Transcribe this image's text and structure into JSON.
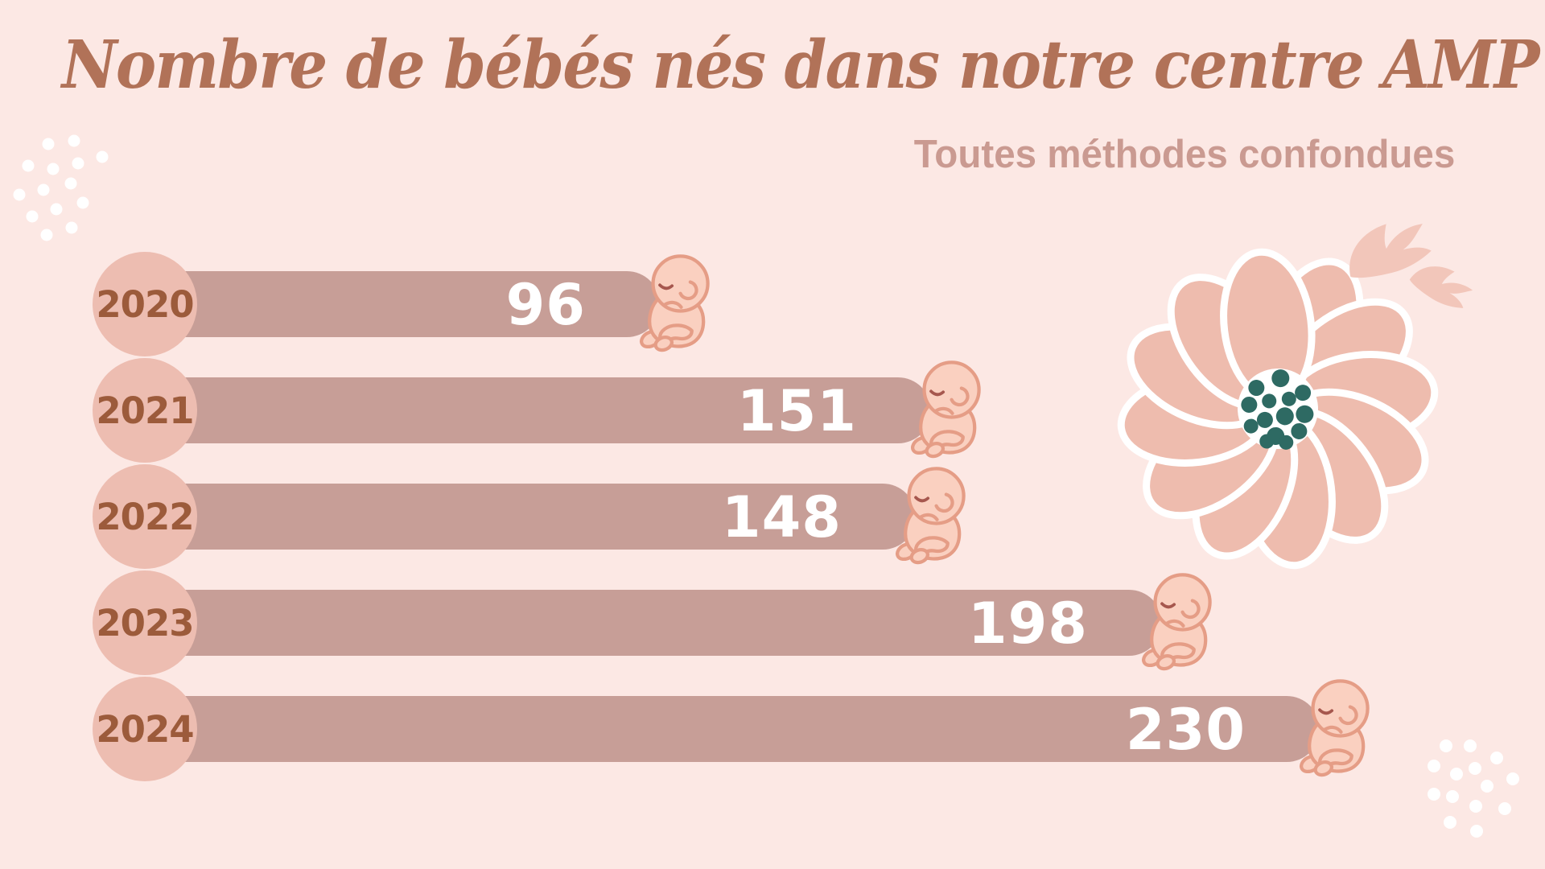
{
  "title": "Nombre de bébés nés dans notre centre AMP",
  "subtitle": "Toutes méthodes confondues",
  "chart_data": {
    "type": "bar",
    "orientation": "horizontal",
    "title": "Nombre de bébés nés dans notre centre AMP",
    "subtitle": "Toutes méthodes confondues",
    "categories": [
      "2020",
      "2021",
      "2022",
      "2023",
      "2024"
    ],
    "values": [
      96,
      151,
      148,
      198,
      230
    ],
    "series": [
      {
        "name": "Bébés nés",
        "values": [
          96,
          151,
          148,
          198,
          230
        ]
      }
    ],
    "value_labels": [
      "96",
      "151",
      "148",
      "198",
      "230"
    ],
    "grid": false,
    "legend": false,
    "xlim": [
      0,
      240
    ]
  },
  "colors": {
    "background": "#FCE8E4",
    "bar": "#C79E97",
    "year_circle": "#EDBDB1",
    "year_text": "#9C5B3B",
    "title_text": "#B17258",
    "subtitle_text": "#CA9A91",
    "value_text": "#FFFFFF",
    "flower_petal": "#EEBCAE",
    "flower_center_dots": "#2E6A63",
    "sprig": "#F2C6BA",
    "baby_skin": "#FAD0C0",
    "baby_outline": "#E59D86",
    "decorative_dots": "#FFFFFF"
  },
  "icons": {
    "bar_end_icon": "baby-icon",
    "decorations": [
      "flower-icon",
      "sprig-icon",
      "dots-cluster-top-left",
      "dots-cluster-bottom-right"
    ]
  }
}
